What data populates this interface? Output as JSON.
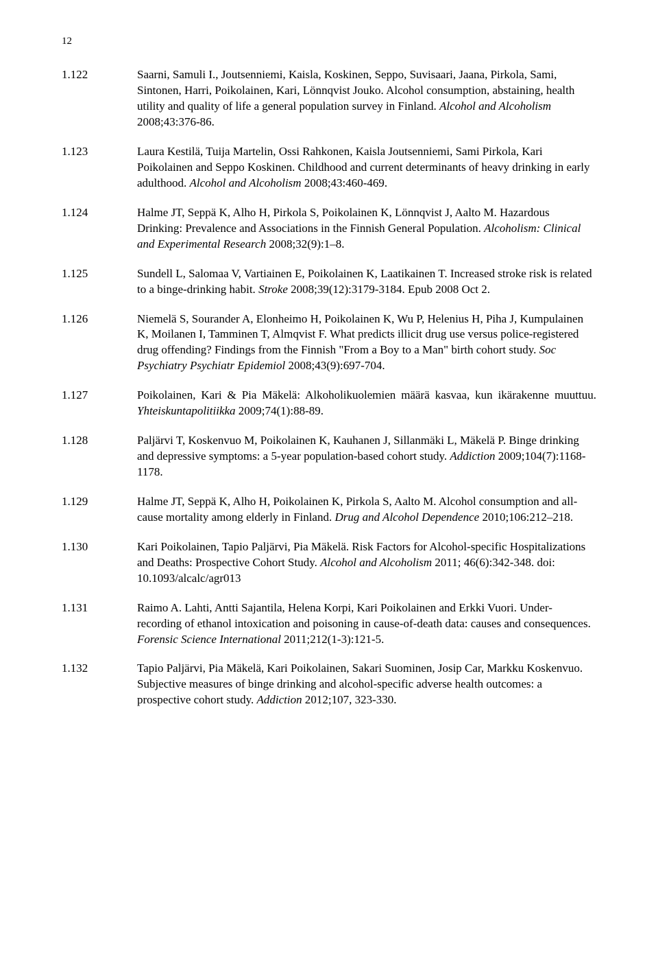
{
  "page_number": "12",
  "entries": [
    {
      "num": "1.122",
      "justify": false,
      "segments": [
        {
          "t": "Saarni, Samuli I., Joutsenniemi, Kaisla, Koskinen, Seppo, Suvisaari, Jaana, Pirkola, Sami, Sintonen, Harri, Poikolainen, Kari, Lönnqvist Jouko. Alcohol consumption, abstaining, health utility and quality of life a general population survey in Finland. "
        },
        {
          "t": "Alcohol and Alcoholism",
          "i": true
        },
        {
          "t": " 2008;43:376-86."
        }
      ]
    },
    {
      "num": "1.123",
      "justify": false,
      "segments": [
        {
          "t": "Laura Kestilä, Tuija Martelin, Ossi Rahkonen, Kaisla Joutsenniemi, Sami Pirkola, Kari Poikolainen and Seppo Koskinen. Childhood and current determinants of heavy drinking in early adulthood. "
        },
        {
          "t": "Alcohol and Alcoholism",
          "i": true
        },
        {
          "t": " 2008;43:460-469."
        }
      ]
    },
    {
      "num": "1.124",
      "justify": false,
      "segments": [
        {
          "t": "Halme JT, Seppä K, Alho H, Pirkola S, Poikolainen K, Lönnqvist J, Aalto M. Hazardous Drinking: Prevalence and Associations in the Finnish General Population. "
        },
        {
          "t": "Alcoholism: Clinical and Experimental Research",
          "i": true
        },
        {
          "t": " 2008;32(9):1–8."
        }
      ]
    },
    {
      "num": "1.125",
      "justify": false,
      "segments": [
        {
          "t": "Sundell L, Salomaa V, Vartiainen E, Poikolainen K, Laatikainen T. Increased stroke risk is related to a binge-drinking habit. "
        },
        {
          "t": "Stroke",
          "i": true
        },
        {
          "t": " 2008;39(12):3179-3184. Epub 2008 Oct 2."
        }
      ]
    },
    {
      "num": "1.126",
      "justify": false,
      "segments": [
        {
          "t": "Niemelä S, Sourander A, Elonheimo H, Poikolainen K, Wu P, Helenius H, Piha J, Kumpulainen K, Moilanen I, Tamminen T, Almqvist F. What predicts illicit drug use versus police-registered drug offending? Findings from the Finnish \"From a Boy to a Man\" birth cohort study. "
        },
        {
          "t": "Soc Psychiatry Psychiatr Epidemiol",
          "i": true
        },
        {
          "t": " 2008;43(9):697-704."
        }
      ]
    },
    {
      "num": "1.127",
      "justify": true,
      "segments": [
        {
          "t": "Poikolainen, Kari & Pia Mäkelä: Alkoholikuolemien määrä kasvaa, kun ikärakenne muuttuu. "
        },
        {
          "t": "Yhteiskuntapolitiikka",
          "i": true
        },
        {
          "t": " 2009;74(1):88-89."
        }
      ]
    },
    {
      "num": "1.128",
      "justify": false,
      "segments": [
        {
          "t": "Paljärvi T, Koskenvuo M, Poikolainen K, Kauhanen J, Sillanmäki L, Mäkelä P. Binge drinking and depressive symptoms: a 5-year population-based cohort study. "
        },
        {
          "t": "Addiction",
          "i": true
        },
        {
          "t": " 2009;104(7):1168-1178."
        }
      ]
    },
    {
      "num": "1.129",
      "justify": false,
      "segments": [
        {
          "t": "Halme JT, Seppä K, Alho H, Poikolainen K, Pirkola S, Aalto M. Alcohol consumption and all-cause mortality among elderly in Finland. "
        },
        {
          "t": "Drug and Alcohol Dependence",
          "i": true
        },
        {
          "t": " 2010;106:212–218."
        }
      ]
    },
    {
      "num": "1.130",
      "justify": false,
      "segments": [
        {
          "t": "Kari Poikolainen, Tapio Paljärvi, Pia Mäkelä. Risk Factors for Alcohol-specific Hospitalizations and Deaths: Prospective Cohort Study. "
        },
        {
          "t": "Alcohol and Alcoholism",
          "i": true
        },
        {
          "t": " 2011; 46(6):342-348. doi: 10.1093/alcalc/agr013"
        }
      ]
    },
    {
      "num": "1.131",
      "justify": false,
      "segments": [
        {
          "t": "Raimo A. Lahti, Antti Sajantila, Helena Korpi, Kari Poikolainen and Erkki Vuori. Under-recording of ethanol intoxication and poisoning in cause-of-death data: causes and consequences. "
        },
        {
          "t": "Forensic Science International",
          "i": true
        },
        {
          "t": " 2011;212(1-3):121-5."
        }
      ]
    },
    {
      "num": "1.132",
      "justify": false,
      "segments": [
        {
          "t": "Tapio Paljärvi, Pia Mäkelä, Kari Poikolainen, Sakari Suominen, Josip Car, Markku Koskenvuo. Subjective measures of binge drinking and alcohol-specific adverse health outcomes: a prospective cohort study. "
        },
        {
          "t": "Addiction",
          "i": true
        },
        {
          "t": " 2012;107, 323-330."
        }
      ]
    }
  ]
}
